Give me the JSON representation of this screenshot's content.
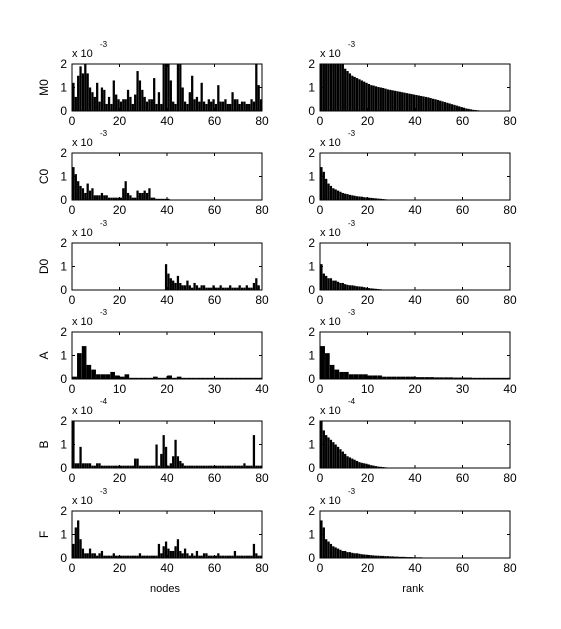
{
  "figure": {
    "bar_color": "#000000",
    "axis_color": "#000000",
    "background": "#ffffff",
    "xlabel_left": "nodes",
    "xlabel_right": "rank"
  },
  "chart_data": [
    {
      "type": "bar",
      "row": 1,
      "col": "left",
      "ylabel": "M0",
      "multiplier_base": "x 10",
      "multiplier_exp": "-3",
      "ylim": [
        0,
        2
      ],
      "xlim": [
        0,
        80
      ],
      "xticks": [
        "0",
        "20",
        "40",
        "60",
        "80"
      ],
      "yticks": [
        "0",
        "1",
        "2"
      ],
      "values": [
        1.2,
        0.6,
        1.5,
        1.9,
        1.6,
        2,
        1.6,
        1,
        0.8,
        0.6,
        1.2,
        0.4,
        1,
        0.9,
        0.3,
        0.6,
        0.3,
        1.3,
        0.7,
        0.5,
        0.4,
        0.5,
        0.5,
        0.9,
        0.6,
        0.3,
        0.7,
        1.7,
        1.3,
        0.9,
        0.6,
        0.4,
        0.5,
        0.5,
        1.4,
        0.3,
        0.8,
        0.3,
        2,
        2,
        2,
        1.3,
        0.4,
        0.3,
        2,
        2,
        1,
        0.4,
        0.3,
        0.8,
        1.5,
        0.5,
        0.6,
        0.4,
        1.2,
        0.4,
        0.3,
        0.5,
        0.4,
        0.5,
        0.3,
        1.1,
        0.4,
        0.4,
        0.5,
        0.3,
        0.3,
        0.8,
        0.5,
        0.5,
        0.3,
        0.4,
        0.4,
        0.3,
        0.3,
        0.5,
        0.4,
        2,
        1.1,
        0.5
      ]
    },
    {
      "type": "bar",
      "row": 1,
      "col": "right",
      "ylabel": "",
      "multiplier_base": "x 10",
      "multiplier_exp": "-3",
      "ylim": [
        0,
        2
      ],
      "xlim": [
        0,
        80
      ],
      "xticks": [
        "0",
        "20",
        "40",
        "60",
        "80"
      ],
      "yticks": [
        "0",
        "1",
        "2"
      ],
      "values": [
        2,
        2,
        2,
        2,
        2,
        2,
        2,
        2,
        2,
        2,
        1.8,
        1.7,
        1.6,
        1.5,
        1.45,
        1.4,
        1.35,
        1.3,
        1.25,
        1.2,
        1.15,
        1.1,
        1.08,
        1.05,
        1.02,
        1,
        0.98,
        0.95,
        0.92,
        0.9,
        0.88,
        0.86,
        0.84,
        0.82,
        0.8,
        0.78,
        0.76,
        0.74,
        0.72,
        0.7,
        0.68,
        0.66,
        0.64,
        0.62,
        0.6,
        0.58,
        0.55,
        0.52,
        0.5,
        0.47,
        0.44,
        0.41,
        0.38,
        0.35,
        0.32,
        0.29,
        0.26,
        0.23,
        0.2,
        0.17,
        0.14,
        0.11,
        0.09,
        0.07,
        0.05,
        0.04,
        0.03,
        0.02,
        0.02,
        0.01,
        0.01,
        0.01,
        0.005,
        0.005,
        0.005,
        0.005,
        0.005,
        0.005,
        0.005,
        0.005
      ]
    },
    {
      "type": "bar",
      "row": 2,
      "col": "left",
      "ylabel": "C0",
      "multiplier_base": "x 10",
      "multiplier_exp": "-3",
      "ylim": [
        0,
        2
      ],
      "xlim": [
        0,
        80
      ],
      "xticks": [
        "0",
        "20",
        "40",
        "60",
        "80"
      ],
      "yticks": [
        "0",
        "1",
        "2"
      ],
      "values": [
        1.4,
        1.1,
        0.8,
        0.6,
        0.5,
        0.3,
        0.7,
        0.4,
        0.5,
        0.2,
        0.2,
        0.2,
        0.3,
        0.2,
        0.2,
        0.1,
        0.1,
        0.1,
        0.1,
        0.1,
        0.1,
        0.5,
        0.8,
        0.3,
        0.2,
        0.1,
        0.1,
        0.4,
        0.3,
        0.3,
        0.4,
        0.3,
        0.5,
        0.1,
        0.1,
        0.05,
        0.05,
        0.05,
        0.05,
        0.05,
        0.05,
        0,
        0,
        0,
        0,
        0,
        0,
        0,
        0,
        0,
        0,
        0,
        0,
        0,
        0,
        0,
        0,
        0,
        0,
        0,
        0,
        0,
        0,
        0,
        0,
        0,
        0,
        0,
        0,
        0,
        0,
        0,
        0,
        0,
        0,
        0,
        0,
        0,
        0,
        0
      ]
    },
    {
      "type": "bar",
      "row": 2,
      "col": "right",
      "ylabel": "",
      "multiplier_base": "x 10",
      "multiplier_exp": "-3",
      "ylim": [
        0,
        2
      ],
      "xlim": [
        0,
        80
      ],
      "xticks": [
        "0",
        "20",
        "40",
        "60",
        "80"
      ],
      "yticks": [
        "0",
        "1",
        "2"
      ],
      "values": [
        1.4,
        1.2,
        0.9,
        0.7,
        0.6,
        0.5,
        0.45,
        0.4,
        0.35,
        0.3,
        0.27,
        0.25,
        0.22,
        0.2,
        0.18,
        0.16,
        0.15,
        0.14,
        0.12,
        0.11,
        0.1,
        0.09,
        0.08,
        0.07,
        0.06,
        0.05,
        0.04,
        0.03,
        0.02,
        0.015,
        0.01,
        0,
        0,
        0,
        0,
        0,
        0,
        0,
        0,
        0,
        0,
        0,
        0,
        0,
        0,
        0,
        0,
        0,
        0,
        0,
        0,
        0,
        0,
        0,
        0,
        0,
        0,
        0,
        0,
        0,
        0,
        0,
        0,
        0,
        0,
        0,
        0,
        0,
        0,
        0,
        0,
        0,
        0,
        0,
        0,
        0,
        0,
        0,
        0,
        0
      ]
    },
    {
      "type": "bar",
      "row": 3,
      "col": "left",
      "ylabel": "D0",
      "multiplier_base": "x 10",
      "multiplier_exp": "-3",
      "ylim": [
        0,
        2
      ],
      "xlim": [
        0,
        80
      ],
      "xticks": [
        "0",
        "20",
        "40",
        "60",
        "80"
      ],
      "yticks": [
        "0",
        "1",
        "2"
      ],
      "values": [
        0,
        0,
        0,
        0,
        0,
        0,
        0,
        0,
        0,
        0,
        0,
        0,
        0,
        0,
        0,
        0,
        0,
        0,
        0,
        0,
        0,
        0,
        0,
        0,
        0,
        0,
        0,
        0,
        0,
        0,
        0,
        0,
        0,
        0,
        0,
        0,
        0,
        0,
        0,
        1.1,
        0.7,
        0.5,
        0.4,
        0.3,
        0.6,
        0.3,
        0.2,
        0.2,
        0.4,
        0.2,
        0.1,
        0.3,
        0.2,
        0.1,
        0.2,
        0.2,
        0.1,
        0.1,
        0.1,
        0.2,
        0.1,
        0.1,
        0.2,
        0.1,
        0.1,
        0.1,
        0.2,
        0.1,
        0.1,
        0.1,
        0.2,
        0.1,
        0.1,
        0.2,
        0.1,
        0.1,
        0.3,
        0.5,
        0.2,
        0
      ]
    },
    {
      "type": "bar",
      "row": 3,
      "col": "right",
      "ylabel": "",
      "multiplier_base": "x 10",
      "multiplier_exp": "-3",
      "ylim": [
        0,
        2
      ],
      "xlim": [
        0,
        80
      ],
      "xticks": [
        "0",
        "20",
        "40",
        "60",
        "80"
      ],
      "yticks": [
        "0",
        "1",
        "2"
      ],
      "values": [
        1.1,
        0.7,
        0.6,
        0.5,
        0.5,
        0.4,
        0.4,
        0.35,
        0.3,
        0.3,
        0.25,
        0.22,
        0.2,
        0.2,
        0.18,
        0.16,
        0.15,
        0.14,
        0.12,
        0.1,
        0.08,
        0.07,
        0.06,
        0.05,
        0.04,
        0.03,
        0.02,
        0.015,
        0.01,
        0.005,
        0,
        0,
        0,
        0,
        0,
        0,
        0,
        0,
        0,
        0,
        0,
        0,
        0,
        0,
        0,
        0,
        0,
        0,
        0,
        0,
        0,
        0,
        0,
        0,
        0,
        0,
        0,
        0,
        0,
        0,
        0,
        0,
        0,
        0,
        0,
        0,
        0,
        0,
        0,
        0,
        0,
        0,
        0,
        0,
        0,
        0,
        0,
        0,
        0,
        0
      ]
    },
    {
      "type": "bar",
      "row": 4,
      "col": "left",
      "ylabel": "A",
      "multiplier_base": "x 10",
      "multiplier_exp": "-3",
      "ylim": [
        0,
        2
      ],
      "xlim": [
        0,
        40
      ],
      "xticks": [
        "0",
        "10",
        "20",
        "30",
        "40"
      ],
      "yticks": [
        "0",
        "1",
        "2"
      ],
      "values": [
        0.1,
        1.1,
        1.4,
        0.6,
        0.4,
        0.2,
        0.2,
        0.2,
        0.3,
        0.15,
        0.1,
        0.2,
        0.05,
        0.05,
        0.05,
        0.05,
        0.05,
        0.1,
        0.05,
        0.05,
        0.15,
        0.05,
        0.1,
        0.05,
        0.05,
        0.05,
        0.05,
        0.05,
        0.05,
        0.05,
        0.05,
        0.05,
        0.05,
        0.05,
        0.05,
        0.05,
        0.05,
        0.05,
        0.05,
        0.05
      ]
    },
    {
      "type": "bar",
      "row": 4,
      "col": "right",
      "ylabel": "",
      "multiplier_base": "x 10",
      "multiplier_exp": "-3",
      "ylim": [
        0,
        2
      ],
      "xlim": [
        0,
        40
      ],
      "xticks": [
        "0",
        "10",
        "20",
        "30",
        "40"
      ],
      "yticks": [
        "0",
        "1",
        "2"
      ],
      "values": [
        1.4,
        1.1,
        0.6,
        0.4,
        0.3,
        0.3,
        0.2,
        0.2,
        0.2,
        0.2,
        0.15,
        0.15,
        0.15,
        0.1,
        0.1,
        0.1,
        0.1,
        0.1,
        0.1,
        0.1,
        0.08,
        0.08,
        0.08,
        0.08,
        0.07,
        0.07,
        0.07,
        0.07,
        0.06,
        0.06,
        0.06,
        0.06,
        0.05,
        0.05,
        0.05,
        0.05,
        0.05,
        0.05,
        0.05,
        0.05
      ]
    },
    {
      "type": "bar",
      "row": 5,
      "col": "left",
      "ylabel": "B",
      "multiplier_base": "x 10",
      "multiplier_exp": "-4",
      "ylim": [
        0,
        2
      ],
      "xlim": [
        0,
        80
      ],
      "xticks": [
        "0",
        "20",
        "40",
        "60",
        "80"
      ],
      "yticks": [
        "0",
        "1",
        "2"
      ],
      "values": [
        2,
        0.2,
        0.2,
        0.9,
        0.2,
        0.2,
        0.2,
        0.2,
        0.1,
        0.1,
        0.2,
        0.2,
        0.1,
        0.1,
        0.1,
        0.1,
        0.1,
        0.1,
        0.1,
        0.1,
        0.1,
        0.1,
        0.1,
        0.1,
        0.1,
        0.1,
        0.4,
        0.4,
        0.1,
        0.1,
        0.1,
        0.1,
        0.1,
        0.1,
        0.1,
        1,
        0.1,
        0.6,
        1.4,
        0.9,
        0.1,
        0.2,
        0.5,
        1.2,
        0.5,
        0.3,
        0.2,
        0.1,
        0.1,
        0.1,
        0.1,
        0.1,
        0.1,
        0.1,
        0.1,
        0.1,
        0.1,
        0.1,
        0.1,
        0.1,
        0.1,
        0.1,
        0.1,
        0.1,
        0.1,
        0.1,
        0.1,
        0.1,
        0.1,
        0.1,
        0.1,
        0.1,
        0.2,
        0.1,
        0.1,
        0.1,
        1.4,
        0.1,
        0.1,
        0.1
      ]
    },
    {
      "type": "bar",
      "row": 5,
      "col": "right",
      "ylabel": "",
      "multiplier_base": "x 10",
      "multiplier_exp": "-4",
      "ylim": [
        0,
        2
      ],
      "xlim": [
        0,
        80
      ],
      "xticks": [
        "0",
        "20",
        "40",
        "60",
        "80"
      ],
      "yticks": [
        "0",
        "1",
        "2"
      ],
      "values": [
        2,
        1.6,
        1.4,
        1.3,
        1.2,
        1.1,
        1,
        0.9,
        0.8,
        0.7,
        0.6,
        0.5,
        0.45,
        0.4,
        0.35,
        0.3,
        0.25,
        0.22,
        0.2,
        0.18,
        0.15,
        0.12,
        0.1,
        0.08,
        0.06,
        0.05,
        0.04,
        0.03,
        0.02,
        0.015,
        0.01,
        0.005,
        0.005,
        0.005,
        0,
        0,
        0,
        0,
        0,
        0,
        0,
        0,
        0,
        0,
        0,
        0,
        0,
        0,
        0,
        0,
        0,
        0,
        0,
        0,
        0,
        0,
        0,
        0,
        0,
        0,
        0,
        0,
        0,
        0,
        0,
        0,
        0,
        0,
        0,
        0,
        0,
        0,
        0,
        0,
        0,
        0,
        0,
        0,
        0,
        0
      ]
    },
    {
      "type": "bar",
      "row": 6,
      "col": "left",
      "ylabel": "F",
      "multiplier_base": "x 10",
      "multiplier_exp": "-3",
      "ylim": [
        0,
        2
      ],
      "xlim": [
        0,
        80
      ],
      "xticks": [
        "0",
        "20",
        "40",
        "60",
        "80"
      ],
      "yticks": [
        "0",
        "1",
        "2"
      ],
      "values": [
        0.6,
        1.3,
        1.6,
        0.8,
        0.4,
        0.2,
        0.2,
        0.4,
        0.2,
        0.2,
        0.1,
        0.2,
        0.3,
        0.1,
        0.1,
        0.1,
        0.1,
        0.2,
        0.1,
        0.1,
        0.1,
        0.1,
        0.1,
        0.1,
        0.1,
        0.1,
        0.1,
        0.1,
        0.2,
        0.1,
        0.1,
        0.1,
        0.1,
        0.1,
        0.1,
        0.1,
        0.6,
        0.2,
        0.5,
        0.7,
        0.4,
        0.3,
        0.3,
        0.5,
        0.8,
        0.3,
        0.2,
        0.4,
        0.2,
        0.1,
        0.2,
        0.1,
        0.3,
        0.1,
        0.1,
        0.2,
        0.2,
        0.1,
        0.1,
        0.1,
        0.1,
        0.2,
        0.1,
        0.1,
        0.1,
        0.1,
        0.1,
        0.1,
        0.3,
        0.1,
        0.1,
        0.1,
        0.1,
        0.1,
        0.1,
        0.1,
        0.6,
        0.2,
        0.1,
        0.1
      ]
    },
    {
      "type": "bar",
      "row": 6,
      "col": "right",
      "ylabel": "",
      "multiplier_base": "x 10",
      "multiplier_exp": "-3",
      "ylim": [
        0,
        2
      ],
      "xlim": [
        0,
        80
      ],
      "xticks": [
        "0",
        "20",
        "40",
        "60",
        "80"
      ],
      "yticks": [
        "0",
        "1",
        "2"
      ],
      "values": [
        1.6,
        1.3,
        0.8,
        0.7,
        0.6,
        0.5,
        0.45,
        0.4,
        0.35,
        0.3,
        0.3,
        0.25,
        0.25,
        0.22,
        0.2,
        0.2,
        0.18,
        0.16,
        0.15,
        0.14,
        0.13,
        0.12,
        0.11,
        0.1,
        0.1,
        0.09,
        0.09,
        0.08,
        0.08,
        0.07,
        0.07,
        0.06,
        0.06,
        0.05,
        0.05,
        0.05,
        0.04,
        0.04,
        0.04,
        0.03,
        0.03,
        0.03,
        0.03,
        0.02,
        0.02,
        0.02,
        0.02,
        0.02,
        0.02,
        0.01,
        0.01,
        0.01,
        0.01,
        0.01,
        0.01,
        0.01,
        0.01,
        0.01,
        0.01,
        0.01,
        0.01,
        0.01,
        0.01,
        0.01,
        0.01,
        0.01,
        0.01,
        0.01,
        0.01,
        0.01,
        0.01,
        0.01,
        0.01,
        0.01,
        0.01,
        0.01,
        0.01,
        0.01,
        0.01,
        0.01
      ]
    }
  ]
}
